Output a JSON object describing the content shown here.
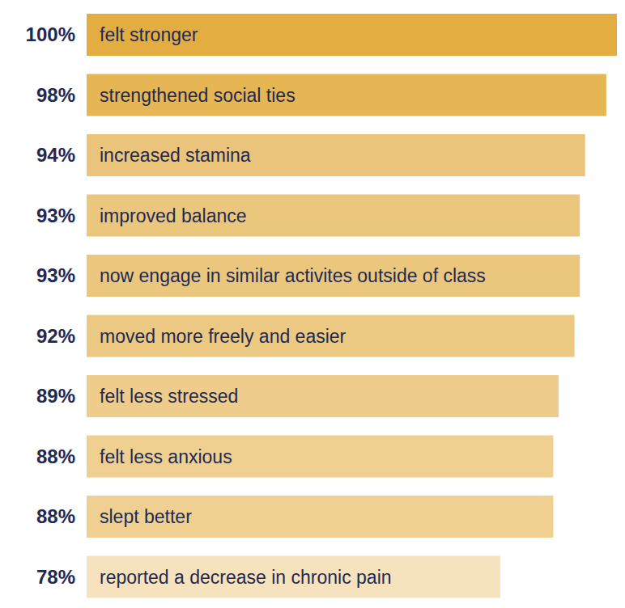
{
  "chart_data": {
    "type": "bar",
    "orientation": "horizontal",
    "categories": [
      "felt stronger",
      "strengthened social ties",
      "increased stamina",
      "improved balance",
      "now engage in similar activites outside of class",
      "moved more freely and easier",
      "felt less stressed",
      "felt less anxious",
      "slept better",
      "reported a decrease in chronic pain"
    ],
    "values": [
      100,
      98,
      94,
      93,
      93,
      92,
      89,
      88,
      88,
      78
    ],
    "value_labels": [
      "100%",
      "98%",
      "94%",
      "93%",
      "93%",
      "92%",
      "89%",
      "88%",
      "88%",
      "78%"
    ],
    "data_labels": true,
    "colors": [
      "#e3ad42",
      "#e5b653",
      "#eac47a",
      "#ebc67d",
      "#ebc67d",
      "#ecc982",
      "#eecd8c",
      "#efd091",
      "#efd091",
      "#f6e2bd"
    ],
    "xlim": [
      0,
      100
    ],
    "tick_labels": false,
    "grid": false
  }
}
